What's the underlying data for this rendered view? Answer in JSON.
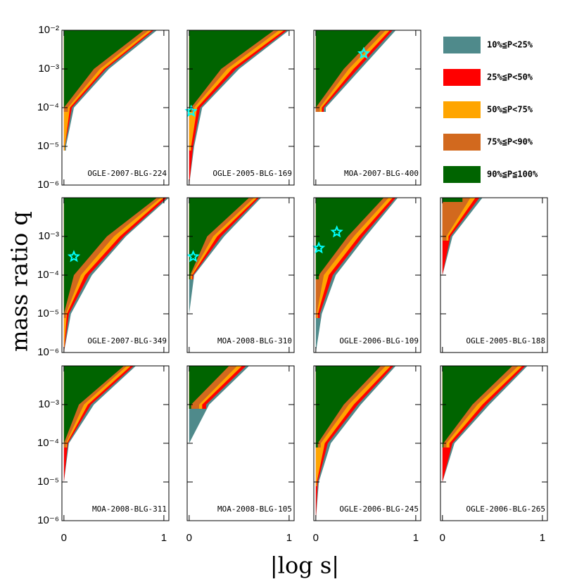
{
  "chart_data": {
    "type": "heatmap-grid",
    "x_label": "|log s|",
    "y_label": "mass ratio q",
    "ylog": true,
    "xlim": [
      -0.02,
      1.05
    ],
    "xticks": [
      0,
      1
    ],
    "ylim": [
      1e-06,
      0.01
    ],
    "yticks": [
      {
        "value": 0.01,
        "label": "10⁻²"
      },
      {
        "value": 0.001,
        "label": "10⁻³"
      },
      {
        "value": 0.0001,
        "label": "10⁻⁴"
      },
      {
        "value": 1e-05,
        "label": "10⁻⁵"
      },
      {
        "value": 1e-06,
        "label": "10⁻⁶"
      }
    ],
    "q": [
      0.01,
      0.001,
      0.0001,
      1e-05,
      1e-06
    ],
    "series": [
      {
        "name": "10%≦P<25%",
        "color": "#4f8a8b"
      },
      {
        "name": "25%≦P<50%",
        "color": "#ff0000"
      },
      {
        "name": "50%≦P<75%",
        "color": "#ffa500"
      },
      {
        "name": "75%≦P<90%",
        "color": "#d2691e"
      },
      {
        "name": "90%≦P≦100%",
        "color": "#006400"
      }
    ],
    "star_color": "#00ffff",
    "panels": [
      {
        "name": "OGLE-2007-BLG-224",
        "values": [
          [
            0.93,
            0.45,
            0.1,
            0.02,
            null
          ],
          [
            0.9,
            0.42,
            0.08,
            0.01,
            null
          ],
          [
            0.88,
            0.4,
            0.06,
            0.01,
            null
          ],
          [
            0.85,
            0.36,
            0.04,
            null,
            null
          ],
          [
            0.8,
            0.3,
            0.0,
            null,
            null
          ]
        ]
      },
      {
        "name": "OGLE-2005-BLG-169",
        "values": [
          [
            1.0,
            0.5,
            0.13,
            0.05,
            0.0
          ],
          [
            0.98,
            0.47,
            0.11,
            0.04,
            0.0
          ],
          [
            0.95,
            0.43,
            0.08,
            0.02,
            null
          ],
          [
            0.9,
            0.38,
            0.05,
            null,
            null
          ],
          [
            0.85,
            0.32,
            0.02,
            null,
            null
          ]
        ],
        "planets": {
          "x": [
            0.02
          ],
          "y": [
            8e-05
          ]
        }
      },
      {
        "name": "MOA-2007-BLG-400",
        "values": [
          [
            0.8,
            0.45,
            0.1,
            null,
            null
          ],
          [
            0.77,
            0.42,
            0.08,
            null,
            null
          ],
          [
            0.74,
            0.38,
            0.06,
            null,
            null
          ],
          [
            0.7,
            0.33,
            0.04,
            null,
            null
          ],
          [
            0.65,
            0.28,
            0.0,
            null,
            null
          ]
        ],
        "planets": {
          "x": [
            0.48
          ],
          "y": [
            0.0025
          ]
        }
      },
      {
        "name": "OGLE-2007-BLG-349",
        "values": [
          [
            1.05,
            0.62,
            0.28,
            0.07,
            0.0
          ],
          [
            1.03,
            0.6,
            0.25,
            0.05,
            0.0
          ],
          [
            1.0,
            0.56,
            0.21,
            0.03,
            0.0
          ],
          [
            0.97,
            0.5,
            0.17,
            0.02,
            null
          ],
          [
            0.93,
            0.43,
            0.1,
            0.0,
            null
          ]
        ],
        "planets": {
          "x": [
            0.1
          ],
          "y": [
            0.0003
          ]
        }
      },
      {
        "name": "MOA-2008-BLG-310",
        "values": [
          [
            0.72,
            0.35,
            0.05,
            0.0,
            null
          ],
          [
            0.7,
            0.32,
            0.04,
            null,
            null
          ],
          [
            0.68,
            0.28,
            0.03,
            null,
            null
          ],
          [
            0.65,
            0.24,
            0.02,
            null,
            null
          ],
          [
            0.6,
            0.18,
            0.01,
            null,
            null
          ]
        ],
        "planets": {
          "x": [
            0.04
          ],
          "y": [
            0.0003
          ]
        }
      },
      {
        "name": "OGLE-2006-BLG-109",
        "values": [
          [
            0.82,
            0.5,
            0.2,
            0.06,
            0.0
          ],
          [
            0.8,
            0.47,
            0.17,
            0.04,
            null
          ],
          [
            0.77,
            0.43,
            0.13,
            0.02,
            null
          ],
          [
            0.73,
            0.38,
            0.08,
            0.01,
            null
          ],
          [
            0.68,
            0.32,
            0.03,
            null,
            null
          ]
        ],
        "planets": {
          "x": [
            0.03,
            0.21
          ],
          "y": [
            0.0005,
            0.0013
          ]
        }
      },
      {
        "name": "OGLE-2005-BLG-188",
        "values": [
          [
            0.4,
            0.1,
            0.0,
            null,
            null
          ],
          [
            0.37,
            0.08,
            0.0,
            null,
            null
          ],
          [
            0.33,
            0.06,
            null,
            null,
            null
          ],
          [
            0.28,
            0.04,
            null,
            null,
            null
          ],
          [
            0.2,
            null,
            null,
            null,
            null
          ]
        ]
      },
      {
        "name": "MOA-2008-BLG-311",
        "values": [
          [
            0.72,
            0.3,
            0.05,
            0.0,
            null
          ],
          [
            0.7,
            0.27,
            0.04,
            0.0,
            null
          ],
          [
            0.67,
            0.24,
            0.03,
            null,
            null
          ],
          [
            0.63,
            0.2,
            0.02,
            null,
            null
          ],
          [
            0.6,
            0.15,
            0.0,
            null,
            null
          ]
        ]
      },
      {
        "name": "MOA-2008-BLG-105",
        "values": [
          [
            0.6,
            0.2,
            0.0,
            null,
            null
          ],
          [
            0.57,
            0.17,
            null,
            null,
            null
          ],
          [
            0.53,
            0.13,
            null,
            null,
            null
          ],
          [
            0.48,
            0.1,
            null,
            null,
            null
          ],
          [
            0.4,
            0.02,
            null,
            null,
            null
          ]
        ]
      },
      {
        "name": "OGLE-2006-BLG-245",
        "values": [
          [
            0.8,
            0.45,
            0.15,
            0.03,
            0.0
          ],
          [
            0.78,
            0.42,
            0.12,
            0.02,
            0.0
          ],
          [
            0.75,
            0.38,
            0.09,
            0.01,
            null
          ],
          [
            0.7,
            0.33,
            0.05,
            null,
            null
          ],
          [
            0.65,
            0.28,
            0.02,
            null,
            null
          ]
        ]
      },
      {
        "name": "OGLE-2006-BLG-265",
        "values": [
          [
            0.85,
            0.47,
            0.12,
            0.0,
            null
          ],
          [
            0.83,
            0.44,
            0.1,
            0.0,
            null
          ],
          [
            0.8,
            0.4,
            0.07,
            null,
            null
          ],
          [
            0.76,
            0.35,
            0.04,
            null,
            null
          ],
          [
            0.7,
            0.3,
            0.01,
            null,
            null
          ]
        ]
      }
    ]
  }
}
